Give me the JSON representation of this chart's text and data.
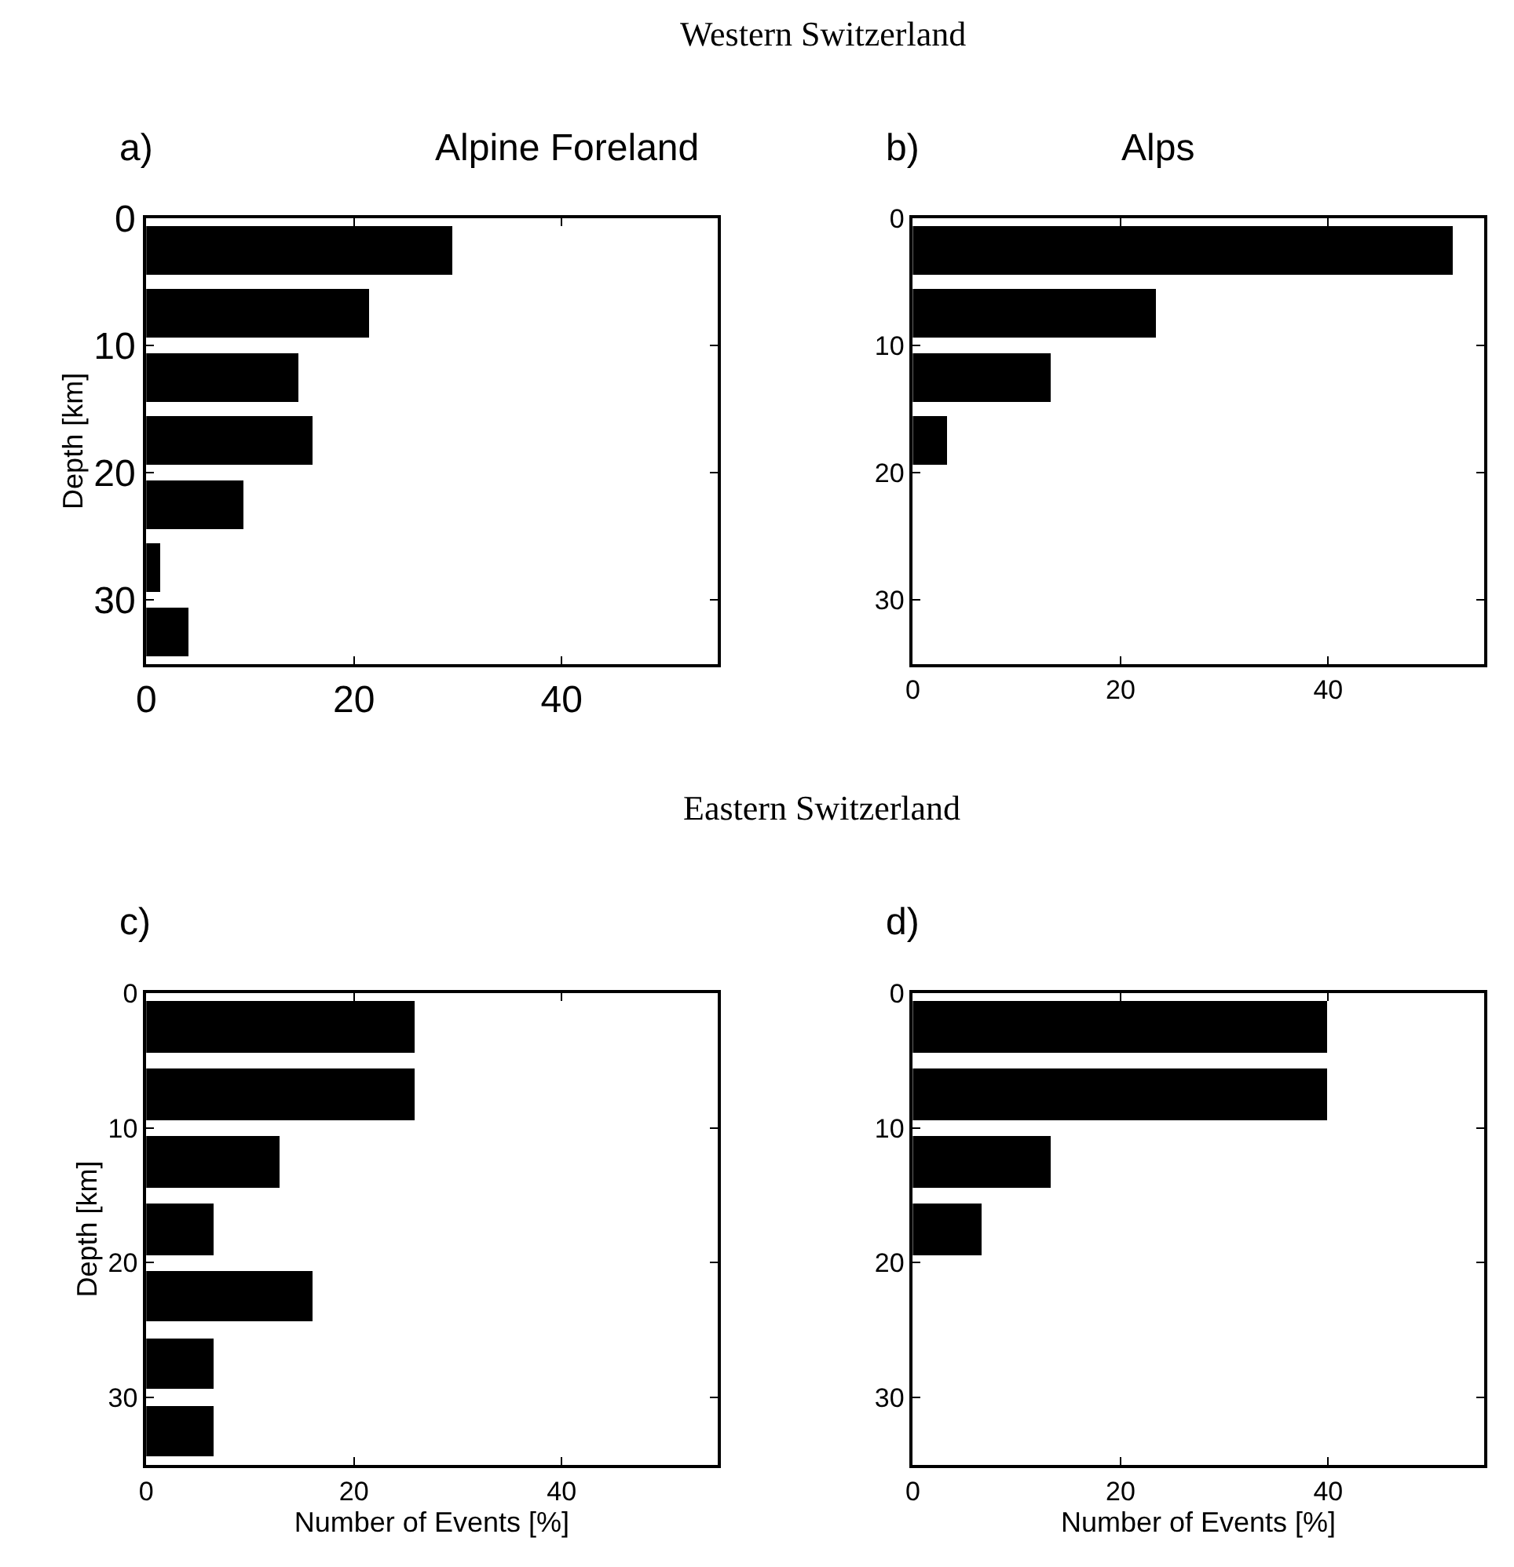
{
  "chart_data": [
    {
      "type": "bar",
      "orientation": "horizontal",
      "title": "Alpine Foreland",
      "ylabel": "Depth [km]",
      "annotations": [
        "Western Switzerland",
        "a)"
      ],
      "x": [
        2.5,
        7.5,
        12.5,
        17.5,
        22.5,
        27.5,
        32.5
      ],
      "values": [
        29.5,
        21.4,
        14.7,
        16.0,
        9.4,
        1.3,
        4.1
      ],
      "color": "#000000",
      "xlim": [
        0,
        55
      ],
      "xticks": [
        0,
        20,
        40
      ],
      "ylim": [
        35,
        0
      ],
      "yticks": [
        0,
        10,
        20,
        30
      ]
    },
    {
      "type": "bar",
      "orientation": "horizontal",
      "title": "Alps",
      "annotations": [
        "b)"
      ],
      "x": [
        2.5,
        7.5,
        12.5,
        17.5
      ],
      "values": [
        52.0,
        23.4,
        13.3,
        3.3
      ],
      "color": "#000000",
      "xlim": [
        0,
        55
      ],
      "xticks": [
        0,
        20,
        40
      ],
      "ylim": [
        35,
        0
      ],
      "yticks": [
        0,
        10,
        20,
        30
      ]
    },
    {
      "type": "bar",
      "orientation": "horizontal",
      "xlabel": "Number of Events [%]",
      "ylabel": "Depth [km]",
      "annotations": [
        "Eastern Switzerland",
        "c)"
      ],
      "x": [
        2.5,
        7.5,
        12.5,
        17.5,
        22.5,
        27.5,
        32.5
      ],
      "values": [
        25.8,
        25.8,
        12.9,
        6.5,
        16.1,
        6.5,
        6.5
      ],
      "color": "#000000",
      "xlim": [
        0,
        55
      ],
      "xticks": [
        0,
        20,
        40
      ],
      "ylim": [
        35,
        0
      ],
      "yticks": [
        0,
        10,
        20,
        30
      ]
    },
    {
      "type": "bar",
      "orientation": "horizontal",
      "xlabel": "Number of Events [%]",
      "annotations": [
        "d)"
      ],
      "x": [
        2.5,
        7.5,
        12.5,
        17.5
      ],
      "values": [
        40.0,
        40.0,
        13.3,
        6.7
      ],
      "color": "#000000",
      "xlim": [
        0,
        55
      ],
      "xticks": [
        0,
        20,
        40
      ],
      "ylim": [
        35,
        0
      ],
      "yticks": [
        0,
        10,
        20,
        30
      ]
    }
  ]
}
